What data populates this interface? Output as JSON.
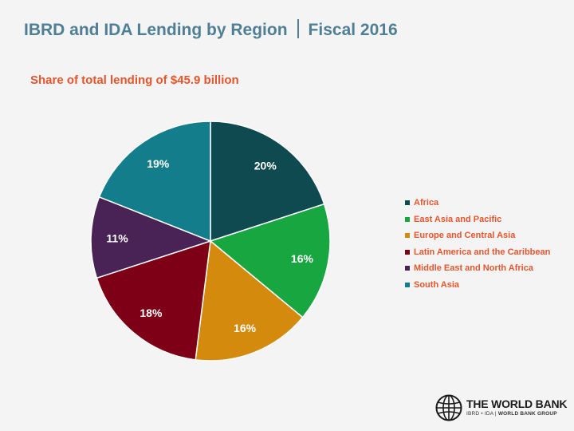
{
  "title_main": "IBRD and IDA Lending by Region",
  "title_fiscal": "Fiscal 2016",
  "colors": {
    "title": "#4f7f94",
    "subtitle": "#e8542c",
    "legend_text": "#e8542c",
    "background": "#f4f4f4"
  },
  "chart_data": {
    "type": "pie",
    "title": "",
    "subtitle": "Share of total lending of $45.9 billion",
    "legend_position": "right",
    "start": "12 o'clock",
    "direction": "clockwise",
    "slices": [
      {
        "label": "Africa",
        "value": 20,
        "display": "20%",
        "color": "#0e4a50"
      },
      {
        "label": "East Asia and Pacific",
        "value": 16,
        "display": "16%",
        "color": "#17a640"
      },
      {
        "label": "Europe and Central Asia",
        "value": 16,
        "display": "16%",
        "color": "#d48a0c"
      },
      {
        "label": "Latin America and the Caribbean",
        "value": 18,
        "display": "18%",
        "color": "#7e0016"
      },
      {
        "label": "Middle East and North Africa",
        "value": 11,
        "display": "11%",
        "color": "#4a2356"
      },
      {
        "label": "South Asia",
        "value": 19,
        "display": "19%",
        "color": "#137d8b"
      }
    ]
  },
  "logo": {
    "name": "THE WORLD BANK",
    "sub_left": "IBRD • IDA",
    "sub_right": "WORLD BANK GROUP"
  }
}
